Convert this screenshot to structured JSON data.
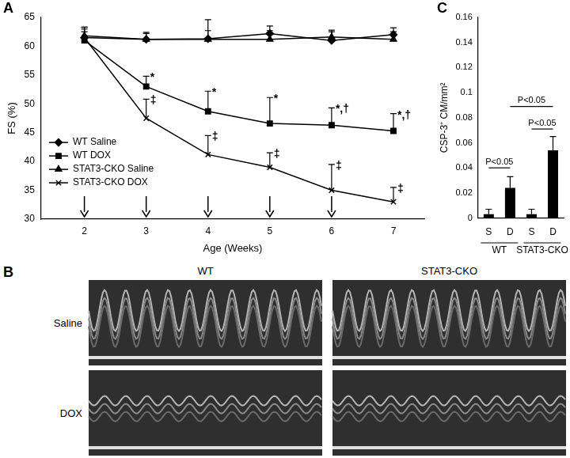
{
  "chart_data": [
    {
      "type": "line",
      "title": "A",
      "x": [
        2,
        3,
        4,
        5,
        6,
        7
      ],
      "xlim": [
        1.3,
        7.5
      ],
      "xticks": [
        2,
        3,
        4,
        5,
        6,
        7
      ],
      "ylim": [
        30,
        65
      ],
      "yticks": [
        30,
        35,
        40,
        45,
        50,
        55,
        60,
        65
      ],
      "x_label": "Age (Weeks)",
      "y_label": "FS (%)",
      "grid": false,
      "legend": "left",
      "series": [
        {
          "name": "WT Saline",
          "color": "#000000",
          "marker": "diamond",
          "line_style": "solid",
          "values": [
            61.5,
            61.2,
            61.3,
            62.2,
            61.0,
            62.0
          ],
          "errors": [
            1.8,
            1.0,
            3.3,
            1.3,
            1.5,
            1.2
          ]
        },
        {
          "name": "WT DOX",
          "color": "#000000",
          "marker": "square",
          "line_style": "solid",
          "values": [
            61.0,
            53.0,
            48.7,
            46.6,
            46.3,
            45.3
          ],
          "errors": [
            1.5,
            1.8,
            3.5,
            4.5,
            3.0,
            3.0
          ]
        },
        {
          "name": "STAT3-CKO Saline",
          "color": "#000000",
          "marker": "triangle",
          "line_style": "solid",
          "values": [
            61.8,
            61.2,
            61.2,
            61.2,
            61.6,
            61.2
          ],
          "errors": [
            1.5,
            1.2,
            1.5,
            1.5,
            1.2,
            1.3
          ]
        },
        {
          "name": "STAT3-CKO DOX",
          "color": "#000000",
          "marker": "cross",
          "line_style": "solid",
          "values": [
            61.5,
            47.5,
            41.2,
            39.0,
            35.0,
            33.0
          ],
          "errors": [
            1.5,
            3.3,
            3.3,
            2.5,
            4.5,
            2.5
          ]
        }
      ],
      "annotations": [
        {
          "series": "WT DOX",
          "x": 3,
          "text": "*"
        },
        {
          "series": "WT DOX",
          "x": 4,
          "text": "*"
        },
        {
          "series": "WT DOX",
          "x": 5,
          "text": "*"
        },
        {
          "series": "WT DOX",
          "x": 6,
          "text": "*,†"
        },
        {
          "series": "WT DOX",
          "x": 7,
          "text": "*,†"
        },
        {
          "series": "STAT3-CKO DOX",
          "x": 3,
          "text": "‡"
        },
        {
          "series": "STAT3-CKO DOX",
          "x": 4,
          "text": "‡"
        },
        {
          "series": "STAT3-CKO DOX",
          "x": 5,
          "text": "‡"
        },
        {
          "series": "STAT3-CKO DOX",
          "x": 6,
          "text": "‡"
        },
        {
          "series": "STAT3-CKO DOX",
          "x": 7,
          "text": "‡"
        }
      ],
      "arrows": [
        2,
        3,
        4,
        5,
        6
      ]
    },
    {
      "type": "bar",
      "title": "C",
      "categories": [
        "S",
        "D",
        "S",
        "D"
      ],
      "values": [
        0.003,
        0.024,
        0.003,
        0.054
      ],
      "errors": [
        0.004,
        0.009,
        0.004,
        0.011
      ],
      "color": "#000000",
      "ylim": [
        0,
        0.16
      ],
      "yticks": [
        0,
        0.02,
        0.04,
        0.06,
        0.08,
        0.1,
        0.12,
        0.14,
        0.16
      ],
      "y_label": "CSP-3⁺ CM/mm²",
      "grid": false,
      "groups": [
        {
          "name": "WT",
          "size": 2
        },
        {
          "name": "STAT3-CKO",
          "size": 2
        }
      ],
      "comparisons": [
        {
          "from": 0,
          "to": 1,
          "y": 0.04,
          "text": "P<0.05"
        },
        {
          "from": 2,
          "to": 3,
          "y": 0.071,
          "text": "P<0.05"
        },
        {
          "from": 1,
          "to": 3,
          "y": 0.089,
          "text": "P<0.05"
        }
      ]
    }
  ],
  "panel_b": {
    "title": "B",
    "columns": [
      "WT",
      "STAT3-CKO"
    ],
    "rows": [
      "Saline",
      "DOX"
    ]
  }
}
